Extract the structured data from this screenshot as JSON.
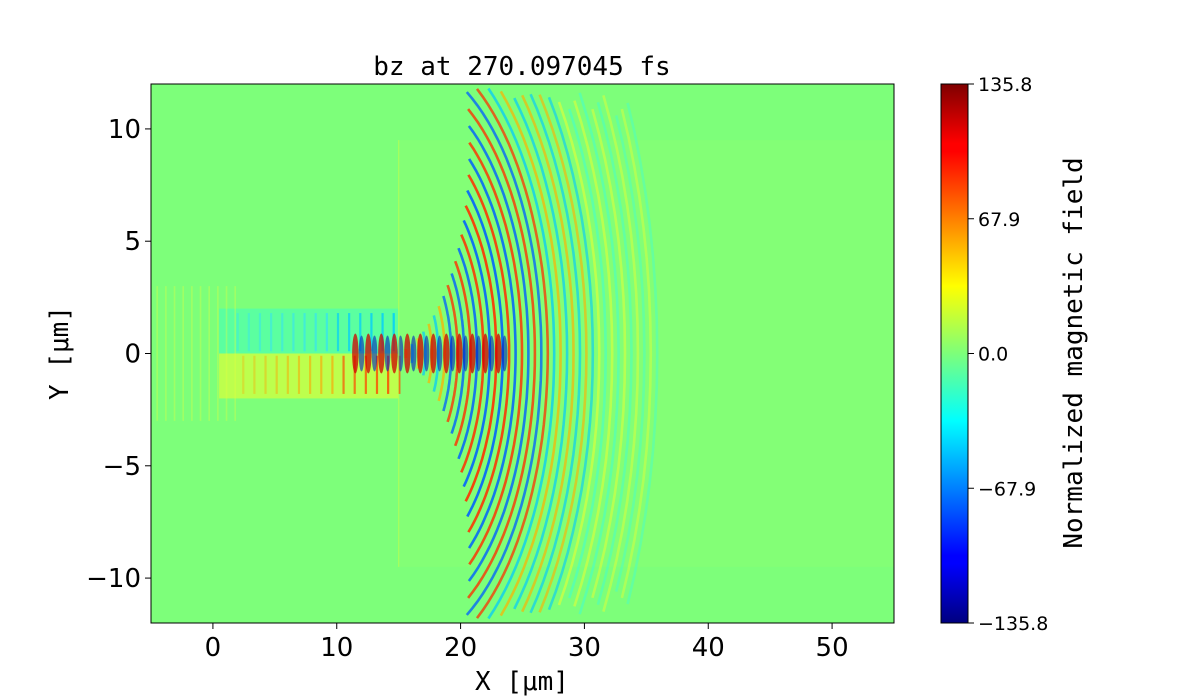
{
  "chart_data": {
    "type": "heatmap",
    "title": "bz at 270.097045 fs",
    "xlabel": "X [μm]",
    "ylabel": "Y [μm]",
    "xlim": [
      -5,
      55
    ],
    "ylim": [
      -12,
      12
    ],
    "x_ticks": [
      0,
      10,
      20,
      30,
      40,
      50
    ],
    "x_tick_labels": [
      "0",
      "10",
      "20",
      "30",
      "40",
      "50"
    ],
    "y_ticks": [
      10,
      5,
      0,
      -5,
      -10
    ],
    "y_tick_labels": [
      "10",
      "5",
      "0",
      "−5",
      "−10"
    ],
    "colorbar": {
      "label": "Normalized magnetic field",
      "range": [
        -135.8,
        135.8
      ],
      "ticks": [
        135.8,
        67.9,
        0.0,
        -67.9,
        -135.8
      ],
      "tick_labels": [
        "135.8",
        "67.9",
        "0.0",
        "−67.9",
        "−135.8"
      ],
      "colormap": "jet",
      "levels": 40
    },
    "field": {
      "background_value": 0.0,
      "target_block": {
        "x": [
          15,
          55
        ],
        "y": [
          -9.5,
          9.5
        ]
      },
      "channel": {
        "x": [
          0.5,
          15
        ],
        "y": [
          -2,
          2
        ]
      },
      "wavefront_center_x": 15,
      "wavefront_outer_radius": 21,
      "peak_value": 135.8
    }
  }
}
